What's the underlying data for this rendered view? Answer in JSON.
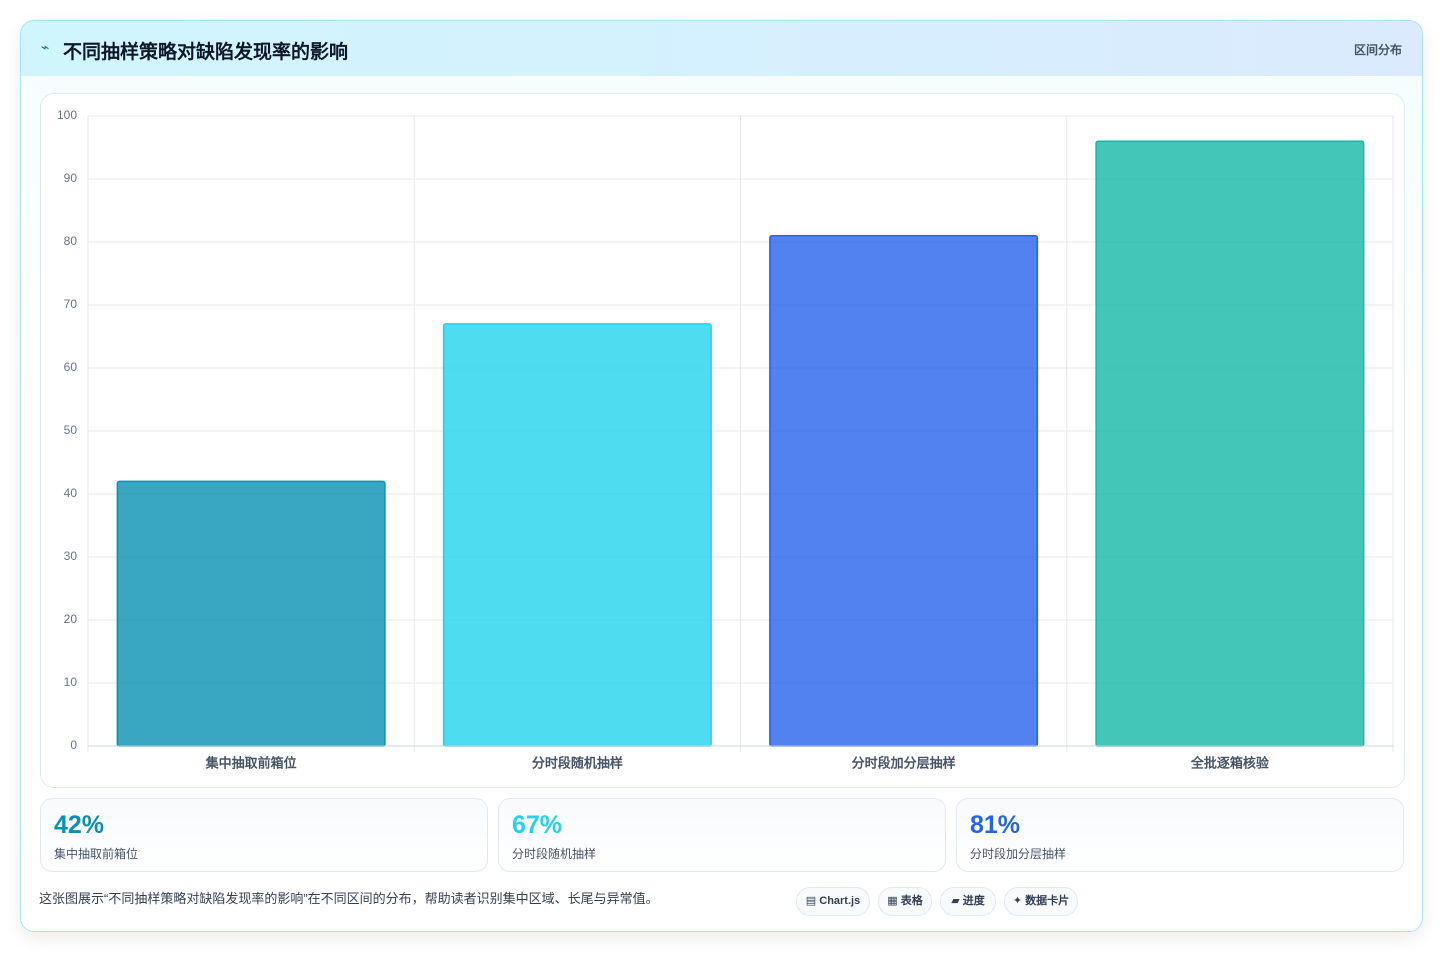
{
  "header": {
    "icon": "⌁",
    "title": "不同抽样策略对缺陷发现率的影响",
    "tag": "区间分布"
  },
  "chart_data": {
    "type": "bar",
    "categories": [
      "集中抽取前箱位",
      "分时段随机抽样",
      "分时段加分层抽样",
      "全批逐箱核验"
    ],
    "values": [
      42,
      67,
      81,
      96
    ],
    "colors": [
      "#0891b2",
      "#22d3ee",
      "#2563eb",
      "#14b8a6"
    ],
    "ylim": [
      0,
      100
    ],
    "yticks": [
      0,
      10,
      20,
      30,
      40,
      50,
      60,
      70,
      80,
      90,
      100
    ],
    "grid": true
  },
  "cards": [
    {
      "value": "42%",
      "label": "集中抽取前箱位"
    },
    {
      "value": "67%",
      "label": "分时段随机抽样"
    },
    {
      "value": "81%",
      "label": "分时段加分层抽样"
    }
  ],
  "footer": {
    "text": "这张图展示“不同抽样策略对缺陷发现率的影响”在不同区间的分布，帮助读者识别集中区域、长尾与异常值。",
    "chips": [
      "▤ Chart.js",
      "▦ 表格",
      "▰ 进度",
      "✦ 数据卡片"
    ]
  }
}
